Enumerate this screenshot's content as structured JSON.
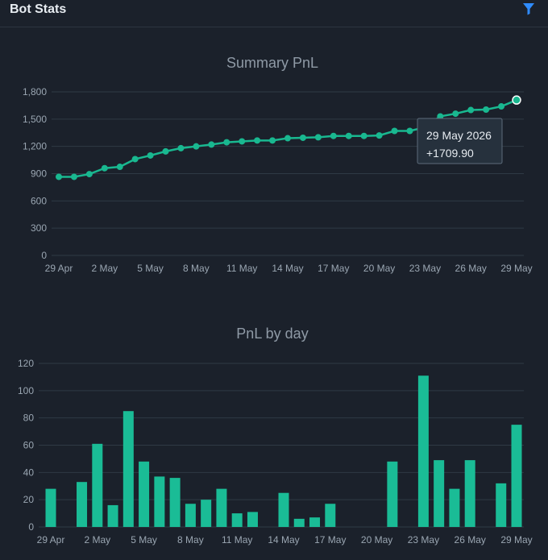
{
  "header": {
    "title": "Bot Stats",
    "filter_icon": "filter-icon",
    "accent": "#2f8cff"
  },
  "colors": {
    "line": "#19b890",
    "bar": "#1abc96"
  },
  "chart_data": [
    {
      "type": "line",
      "title": "Summary PnL",
      "x": [
        "29 Apr",
        "30 Apr",
        "1 May",
        "2 May",
        "3 May",
        "4 May",
        "5 May",
        "6 May",
        "7 May",
        "8 May",
        "9 May",
        "10 May",
        "11 May",
        "12 May",
        "13 May",
        "14 May",
        "15 May",
        "16 May",
        "17 May",
        "18 May",
        "19 May",
        "20 May",
        "21 May",
        "22 May",
        "23 May",
        "24 May",
        "25 May",
        "26 May",
        "27 May",
        "28 May",
        "29 May"
      ],
      "values": [
        865,
        865,
        895,
        960,
        975,
        1060,
        1100,
        1145,
        1180,
        1200,
        1220,
        1245,
        1255,
        1265,
        1265,
        1290,
        1295,
        1300,
        1315,
        1315,
        1315,
        1320,
        1370,
        1370,
        1410,
        1530,
        1560,
        1600,
        1605,
        1640,
        1709.9
      ],
      "tick_labels": [
        "29 Apr",
        "2 May",
        "5 May",
        "8 May",
        "11 May",
        "14 May",
        "17 May",
        "20 May",
        "23 May",
        "26 May",
        "29 May"
      ],
      "y_ticks": [
        "0",
        "300",
        "600",
        "900",
        "1,200",
        "1,500",
        "1,800"
      ],
      "ylim": [
        0,
        1800
      ],
      "grid": true,
      "tooltip": {
        "date": "29 May 2026",
        "value": "+1709.90"
      }
    },
    {
      "type": "bar",
      "title": "PnL by day",
      "x": [
        "29 Apr",
        "30 Apr",
        "1 May",
        "2 May",
        "3 May",
        "4 May",
        "5 May",
        "6 May",
        "7 May",
        "8 May",
        "9 May",
        "10 May",
        "11 May",
        "12 May",
        "13 May",
        "14 May",
        "15 May",
        "16 May",
        "17 May",
        "18 May",
        "19 May",
        "20 May",
        "21 May",
        "22 May",
        "23 May",
        "24 May",
        "25 May",
        "26 May",
        "27 May",
        "28 May",
        "29 May"
      ],
      "values": [
        28,
        0,
        33,
        61,
        16,
        85,
        48,
        37,
        36,
        17,
        20,
        28,
        10,
        11,
        0,
        25,
        6,
        7,
        17,
        0,
        0,
        0,
        48,
        0,
        111,
        49,
        28,
        49,
        0,
        32,
        75
      ],
      "tick_labels": [
        "29 Apr",
        "2 May",
        "5 May",
        "8 May",
        "11 May",
        "14 May",
        "17 May",
        "20 May",
        "23 May",
        "26 May",
        "29 May"
      ],
      "y_ticks": [
        "0",
        "20",
        "40",
        "60",
        "80",
        "100",
        "120"
      ],
      "ylim": [
        0,
        120
      ],
      "grid": true
    }
  ]
}
